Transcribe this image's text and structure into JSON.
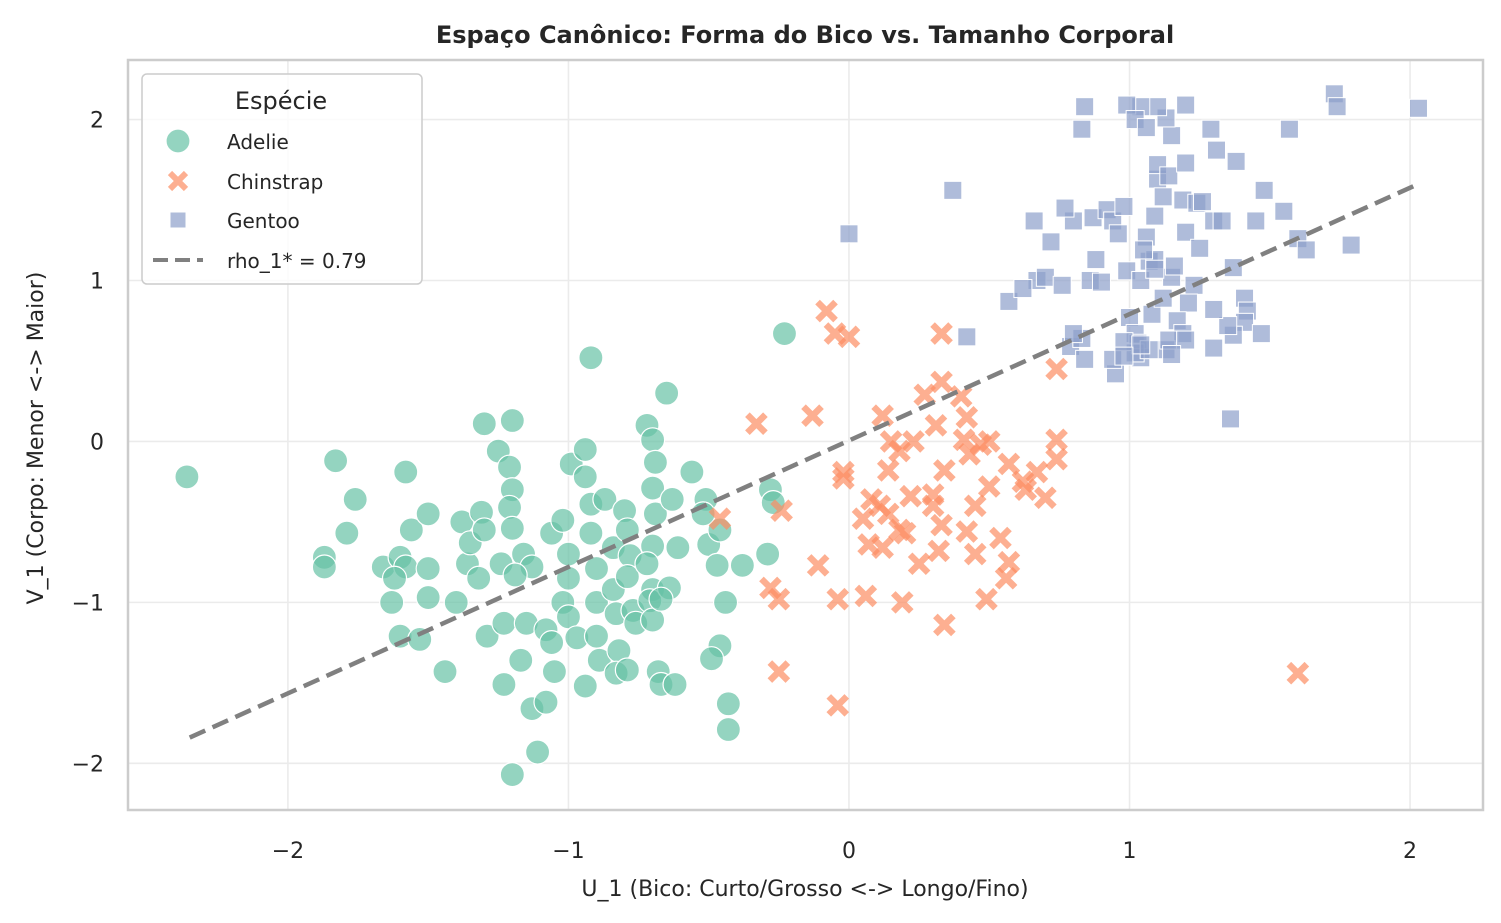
{
  "chart_data": {
    "type": "scatter",
    "title": "Espaço Canônico: Forma do Bico vs. Tamanho Corporal",
    "xlabel": "U_1 (Bico: Curto/Grosso <-> Longo/Fino)",
    "ylabel": "V_1 (Corpo: Menor <-> Maior)",
    "xlim": [
      -2.57,
      2.26
    ],
    "ylim": [
      -2.29,
      2.37
    ],
    "xticks": [
      -2,
      -1,
      0,
      1,
      2
    ],
    "xtick_labels": [
      "−2",
      "−1",
      "0",
      "1",
      "2"
    ],
    "yticks": [
      -2,
      -1,
      0,
      1,
      2
    ],
    "ytick_labels": [
      "−2",
      "−1",
      "0",
      "1",
      "2"
    ],
    "grid": true,
    "legend": {
      "title": "Espécie",
      "position": "top-left",
      "entries": [
        "Adelie",
        "Chinstrap",
        "Gentoo",
        "rho_1* = 0.79"
      ]
    },
    "series": [
      {
        "name": "Adelie",
        "marker": "circle",
        "color": "#66c2a5",
        "points": [
          [
            -2.36,
            -0.22
          ],
          [
            -1.83,
            -0.12
          ],
          [
            -1.76,
            -0.36
          ],
          [
            -1.79,
            -0.57
          ],
          [
            -1.87,
            -0.72
          ],
          [
            -1.87,
            -0.78
          ],
          [
            -1.58,
            -0.19
          ],
          [
            -1.56,
            -0.55
          ],
          [
            -1.5,
            -0.45
          ],
          [
            -1.66,
            -0.78
          ],
          [
            -1.6,
            -0.72
          ],
          [
            -1.58,
            -0.78
          ],
          [
            -1.62,
            -0.85
          ],
          [
            -1.63,
            -1.0
          ],
          [
            -1.6,
            -1.21
          ],
          [
            -1.53,
            -1.23
          ],
          [
            -1.5,
            -0.97
          ],
          [
            -1.5,
            -0.79
          ],
          [
            -1.44,
            -1.43
          ],
          [
            -1.4,
            -1.0
          ],
          [
            -1.36,
            -0.76
          ],
          [
            -1.38,
            -0.5
          ],
          [
            -1.35,
            -0.63
          ],
          [
            -1.31,
            -0.44
          ],
          [
            -1.3,
            -0.55
          ],
          [
            -1.32,
            -0.85
          ],
          [
            -1.29,
            -1.21
          ],
          [
            -1.23,
            -1.13
          ],
          [
            -1.23,
            -1.51
          ],
          [
            -1.3,
            0.11
          ],
          [
            -1.25,
            -0.06
          ],
          [
            -1.2,
            0.13
          ],
          [
            -1.21,
            -0.16
          ],
          [
            -1.2,
            -0.3
          ],
          [
            -1.21,
            -0.41
          ],
          [
            -1.2,
            -0.54
          ],
          [
            -1.24,
            -0.76
          ],
          [
            -1.16,
            -0.7
          ],
          [
            -1.13,
            -0.78
          ],
          [
            -1.19,
            -0.83
          ],
          [
            -1.17,
            -1.36
          ],
          [
            -1.15,
            -1.13
          ],
          [
            -1.13,
            -1.66
          ],
          [
            -1.11,
            -1.93
          ],
          [
            -1.2,
            -2.07
          ],
          [
            -1.08,
            -1.17
          ],
          [
            -1.06,
            -1.25
          ],
          [
            -1.08,
            -1.62
          ],
          [
            -1.05,
            -1.43
          ],
          [
            -1.06,
            -0.57
          ],
          [
            -1.02,
            -0.49
          ],
          [
            -1.0,
            -0.7
          ],
          [
            -1.0,
            -0.85
          ],
          [
            -1.02,
            -1.0
          ],
          [
            -1.0,
            -1.09
          ],
          [
            -0.97,
            -1.22
          ],
          [
            -0.94,
            -1.52
          ],
          [
            -0.92,
            0.52
          ],
          [
            -0.99,
            -0.14
          ],
          [
            -0.94,
            -0.05
          ],
          [
            -0.94,
            -0.22
          ],
          [
            -0.92,
            -0.39
          ],
          [
            -0.92,
            -0.57
          ],
          [
            -0.9,
            -0.79
          ],
          [
            -0.9,
            -1.0
          ],
          [
            -0.9,
            -1.21
          ],
          [
            -0.89,
            -1.36
          ],
          [
            -0.87,
            -0.36
          ],
          [
            -0.84,
            -0.66
          ],
          [
            -0.84,
            -0.92
          ],
          [
            -0.83,
            -1.07
          ],
          [
            -0.82,
            -1.3
          ],
          [
            -0.83,
            -1.44
          ],
          [
            -0.8,
            -0.43
          ],
          [
            -0.79,
            -0.55
          ],
          [
            -0.78,
            -0.71
          ],
          [
            -0.79,
            -0.84
          ],
          [
            -0.77,
            -1.05
          ],
          [
            -0.76,
            -1.13
          ],
          [
            -0.79,
            -1.42
          ],
          [
            -0.72,
            0.1
          ],
          [
            -0.7,
            0.01
          ],
          [
            -0.69,
            -0.13
          ],
          [
            -0.7,
            -0.29
          ],
          [
            -0.69,
            -0.45
          ],
          [
            -0.7,
            -0.65
          ],
          [
            -0.72,
            -0.76
          ],
          [
            -0.7,
            -0.92
          ],
          [
            -0.71,
            -0.99
          ],
          [
            -0.7,
            -1.11
          ],
          [
            -0.68,
            -1.43
          ],
          [
            -0.65,
            0.3
          ],
          [
            -0.63,
            -0.36
          ],
          [
            -0.61,
            -0.66
          ],
          [
            -0.64,
            -0.91
          ],
          [
            -0.67,
            -0.98
          ],
          [
            -0.67,
            -1.51
          ],
          [
            -0.62,
            -1.51
          ],
          [
            -0.56,
            -0.19
          ],
          [
            -0.51,
            -0.36
          ],
          [
            -0.5,
            -0.64
          ],
          [
            -0.46,
            -0.55
          ],
          [
            -0.47,
            -0.77
          ],
          [
            -0.44,
            -1.0
          ],
          [
            -0.46,
            -1.27
          ],
          [
            -0.49,
            -1.35
          ],
          [
            -0.43,
            -1.63
          ],
          [
            -0.43,
            -1.79
          ],
          [
            -0.38,
            -0.77
          ],
          [
            -0.29,
            -0.7
          ],
          [
            -0.28,
            -0.3
          ],
          [
            -0.27,
            -0.38
          ],
          [
            -0.23,
            0.67
          ],
          [
            -0.52,
            -0.45
          ]
        ]
      },
      {
        "name": "Chinstrap",
        "marker": "x",
        "color": "#fc8d62",
        "points": [
          [
            -0.08,
            0.81
          ],
          [
            -0.05,
            0.67
          ],
          [
            0.0,
            0.65
          ],
          [
            0.33,
            0.67
          ],
          [
            0.33,
            0.37
          ],
          [
            0.27,
            0.29
          ],
          [
            -0.33,
            0.11
          ],
          [
            -0.13,
            0.16
          ],
          [
            0.12,
            0.16
          ],
          [
            0.15,
            0.0
          ],
          [
            0.31,
            0.1
          ],
          [
            0.4,
            0.28
          ],
          [
            0.42,
            0.15
          ],
          [
            0.41,
            0.01
          ],
          [
            0.47,
            -0.02
          ],
          [
            0.5,
            0.0
          ],
          [
            0.43,
            -0.08
          ],
          [
            0.74,
            0.45
          ],
          [
            0.74,
            0.01
          ],
          [
            0.74,
            -0.11
          ],
          [
            0.67,
            -0.19
          ],
          [
            0.62,
            -0.25
          ],
          [
            0.57,
            -0.14
          ],
          [
            0.63,
            -0.3
          ],
          [
            0.7,
            -0.35
          ],
          [
            0.5,
            -0.28
          ],
          [
            0.45,
            -0.4
          ],
          [
            0.42,
            -0.56
          ],
          [
            0.34,
            -0.18
          ],
          [
            0.3,
            -0.33
          ],
          [
            0.3,
            -0.4
          ],
          [
            0.33,
            -0.52
          ],
          [
            0.32,
            -0.68
          ],
          [
            0.25,
            -0.76
          ],
          [
            0.22,
            -0.34
          ],
          [
            0.23,
            -0.0
          ],
          [
            0.14,
            -0.18
          ],
          [
            0.18,
            -0.06
          ],
          [
            0.11,
            -0.4
          ],
          [
            0.14,
            -0.45
          ],
          [
            0.12,
            -0.66
          ],
          [
            0.07,
            -0.64
          ],
          [
            0.05,
            -0.48
          ],
          [
            0.08,
            -0.36
          ],
          [
            0.18,
            -0.55
          ],
          [
            0.2,
            -0.57
          ],
          [
            0.45,
            -0.7
          ],
          [
            0.54,
            -0.6
          ],
          [
            0.57,
            -0.75
          ],
          [
            0.56,
            -0.85
          ],
          [
            0.49,
            -0.98
          ],
          [
            0.34,
            -1.14
          ],
          [
            0.19,
            -1.0
          ],
          [
            0.06,
            -0.96
          ],
          [
            -0.04,
            -0.98
          ],
          [
            -0.02,
            -0.23
          ],
          [
            -0.02,
            -0.19
          ],
          [
            -0.11,
            -0.77
          ],
          [
            -0.28,
            -0.91
          ],
          [
            -0.25,
            -0.98
          ],
          [
            -0.24,
            -0.43
          ],
          [
            -0.46,
            -0.48
          ],
          [
            -0.25,
            -1.43
          ],
          [
            -0.04,
            -1.64
          ],
          [
            1.6,
            -1.44
          ]
        ]
      },
      {
        "name": "Gentoo",
        "marker": "square",
        "color": "#8da0cb",
        "points": [
          [
            0.0,
            1.29
          ],
          [
            0.37,
            1.56
          ],
          [
            0.42,
            0.65
          ],
          [
            0.83,
            1.94
          ],
          [
            0.84,
            2.08
          ],
          [
            0.87,
            1.39
          ],
          [
            0.8,
            1.37
          ],
          [
            0.77,
            1.45
          ],
          [
            0.72,
            1.24
          ],
          [
            0.67,
            1.0
          ],
          [
            0.57,
            0.87
          ],
          [
            0.62,
            0.95
          ],
          [
            0.66,
            1.37
          ],
          [
            0.7,
            1.02
          ],
          [
            0.76,
            0.97
          ],
          [
            0.79,
            0.59
          ],
          [
            0.83,
            0.64
          ],
          [
            0.84,
            0.51
          ],
          [
            0.86,
            1.0
          ],
          [
            0.88,
            1.13
          ],
          [
            0.9,
            0.99
          ],
          [
            0.92,
            1.44
          ],
          [
            0.94,
            1.37
          ],
          [
            0.96,
            1.29
          ],
          [
            0.98,
            1.46
          ],
          [
            0.99,
            1.06
          ],
          [
            1.0,
            0.77
          ],
          [
            1.02,
            0.67
          ],
          [
            1.03,
            0.61
          ],
          [
            1.04,
            0.52
          ],
          [
            1.02,
            0.55
          ],
          [
            0.95,
            0.42
          ],
          [
            0.94,
            0.51
          ],
          [
            0.98,
            0.62
          ],
          [
            1.04,
            1.0
          ],
          [
            1.07,
            1.12
          ],
          [
            1.06,
            1.27
          ],
          [
            1.09,
            1.4
          ],
          [
            1.1,
            1.63
          ],
          [
            1.1,
            1.72
          ],
          [
            1.14,
            1.65
          ],
          [
            1.15,
            1.9
          ],
          [
            1.13,
            2.01
          ],
          [
            1.1,
            2.08
          ],
          [
            1.2,
            2.09
          ],
          [
            1.04,
            2.08
          ],
          [
            0.99,
            2.09
          ],
          [
            1.02,
            2.0
          ],
          [
            1.06,
            1.95
          ],
          [
            1.29,
            1.94
          ],
          [
            1.31,
            1.81
          ],
          [
            1.38,
            1.74
          ],
          [
            1.2,
            1.73
          ],
          [
            1.12,
            1.52
          ],
          [
            1.19,
            1.5
          ],
          [
            1.24,
            1.48
          ],
          [
            1.3,
            1.37
          ],
          [
            1.33,
            1.37
          ],
          [
            1.37,
            1.08
          ],
          [
            1.41,
            0.89
          ],
          [
            1.42,
            0.81
          ],
          [
            1.41,
            0.74
          ],
          [
            1.37,
            0.66
          ],
          [
            1.35,
            0.72
          ],
          [
            1.3,
            0.58
          ],
          [
            1.3,
            0.82
          ],
          [
            1.23,
            0.97
          ],
          [
            1.21,
            0.86
          ],
          [
            1.17,
            0.75
          ],
          [
            1.19,
            0.67
          ],
          [
            1.13,
            0.57
          ],
          [
            1.14,
            0.63
          ],
          [
            1.07,
            0.57
          ],
          [
            1.08,
            0.79
          ],
          [
            1.12,
            0.89
          ],
          [
            1.15,
            1.02
          ],
          [
            1.16,
            1.09
          ],
          [
            1.09,
            1.13
          ],
          [
            1.05,
            1.19
          ],
          [
            1.2,
            1.3
          ],
          [
            1.26,
            1.49
          ],
          [
            1.25,
            1.2
          ],
          [
            1.48,
            1.56
          ],
          [
            1.55,
            1.43
          ],
          [
            1.45,
            1.37
          ],
          [
            1.57,
            1.94
          ],
          [
            1.6,
            1.26
          ],
          [
            1.63,
            1.19
          ],
          [
            1.79,
            1.22
          ],
          [
            1.73,
            2.16
          ],
          [
            1.74,
            2.08
          ],
          [
            2.03,
            2.07
          ],
          [
            1.36,
            0.14
          ],
          [
            1.47,
            0.67
          ],
          [
            0.8,
            0.67
          ],
          [
            1.09,
            1.07
          ],
          [
            1.04,
            0.6
          ],
          [
            0.98,
            0.53
          ],
          [
            1.2,
            0.63
          ],
          [
            1.15,
            0.54
          ]
        ]
      }
    ],
    "regression_line": {
      "label": "rho_1* = 0.79",
      "x": [
        -2.35,
        2.03
      ],
      "y": [
        -1.84,
        1.6
      ],
      "color": "#808080",
      "style": "dashed"
    }
  }
}
